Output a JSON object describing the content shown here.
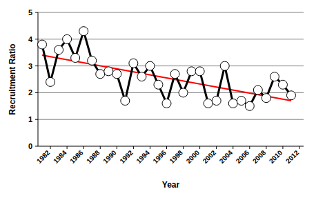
{
  "chart_data": {
    "type": "line",
    "x_label": "Year",
    "y_label": "Recruitment Ratio",
    "x": [
      1981,
      1982,
      1983,
      1984,
      1985,
      1986,
      1987,
      1988,
      1989,
      1990,
      1991,
      1992,
      1993,
      1994,
      1995,
      1996,
      1997,
      1998,
      1999,
      2000,
      2001,
      2002,
      2003,
      2004,
      2005,
      2006,
      2007,
      2008,
      2009,
      2010,
      2011
    ],
    "series": [
      {
        "color": "#000000",
        "marker": "circle",
        "line_style": "solid",
        "values": [
          3.8,
          2.4,
          3.6,
          4.0,
          3.3,
          4.3,
          3.2,
          2.7,
          2.8,
          2.7,
          1.7,
          3.1,
          2.6,
          3.0,
          2.3,
          1.6,
          2.7,
          2.0,
          2.8,
          2.8,
          1.6,
          1.7,
          3.0,
          1.6,
          1.7,
          1.5,
          2.1,
          1.8,
          2.6,
          2.3,
          1.9
        ]
      },
      {
        "color": "#ff0000",
        "marker": "none",
        "line_style": "solid",
        "x": [
          1981,
          2011
        ],
        "values": [
          3.4,
          1.7
        ]
      }
    ],
    "xlim": [
      1980.5,
      2012.5
    ],
    "xticks": [
      1982,
      1984,
      1986,
      1988,
      1990,
      1992,
      1994,
      1996,
      1998,
      2000,
      2002,
      2004,
      2006,
      2008,
      2010,
      2012
    ],
    "ylim": [
      0,
      5
    ],
    "yticks": [
      0,
      1,
      2,
      3,
      4,
      5
    ],
    "grid": true
  }
}
